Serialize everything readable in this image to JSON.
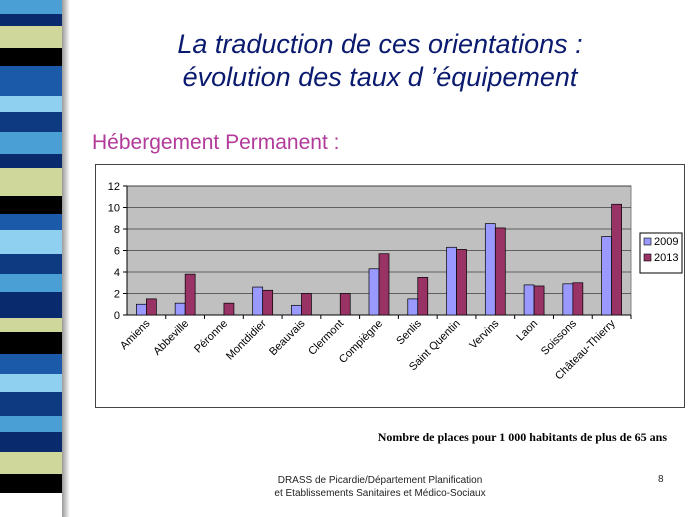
{
  "slide": {
    "title_line1": "La traduction de ces orientations :",
    "title_line2": "évolution des taux d ’équipement",
    "subtitle": "Hébergement Permanent :",
    "caption": "Nombre de places pour 1 000 habitants de plus de 65 ans",
    "footer_line1": "DRASS de Picardie/Département Planification",
    "footer_line2": "et Etablissements Sanitaires et Médico-Sociaux",
    "page_number": "8"
  },
  "colors": {
    "series_2009": "#9999ff",
    "series_2013": "#993366",
    "plot_background": "#c0c0c0",
    "stripes": [
      "#4a9fd4",
      "#0a2a6e",
      "#cfd89a",
      "#000000",
      "#1a5aa8",
      "#8fd0f0",
      "#0d3a80"
    ]
  },
  "chart_data": {
    "type": "bar",
    "categories": [
      "Amiens",
      "Abbeville",
      "Péronne",
      "Montdidier",
      "Beauvais",
      "Clermont",
      "Compiègne",
      "Senlis",
      "Saint Quentin",
      "Vervins",
      "Laon",
      "Soissons",
      "Château-Thierry"
    ],
    "series": [
      {
        "name": "2009",
        "values": [
          1.0,
          1.1,
          0,
          2.6,
          0.9,
          0,
          4.3,
          1.5,
          6.3,
          8.5,
          2.8,
          2.9,
          7.3
        ]
      },
      {
        "name": "2013",
        "values": [
          1.5,
          3.8,
          1.1,
          2.3,
          2.0,
          2.0,
          5.7,
          3.5,
          6.1,
          8.1,
          2.7,
          3.0,
          10.3
        ]
      }
    ],
    "yticks": [
      "0",
      "2",
      "4",
      "6",
      "8",
      "10",
      "12"
    ],
    "ylim": [
      0,
      12
    ],
    "grid": true,
    "legend_position": "right"
  }
}
